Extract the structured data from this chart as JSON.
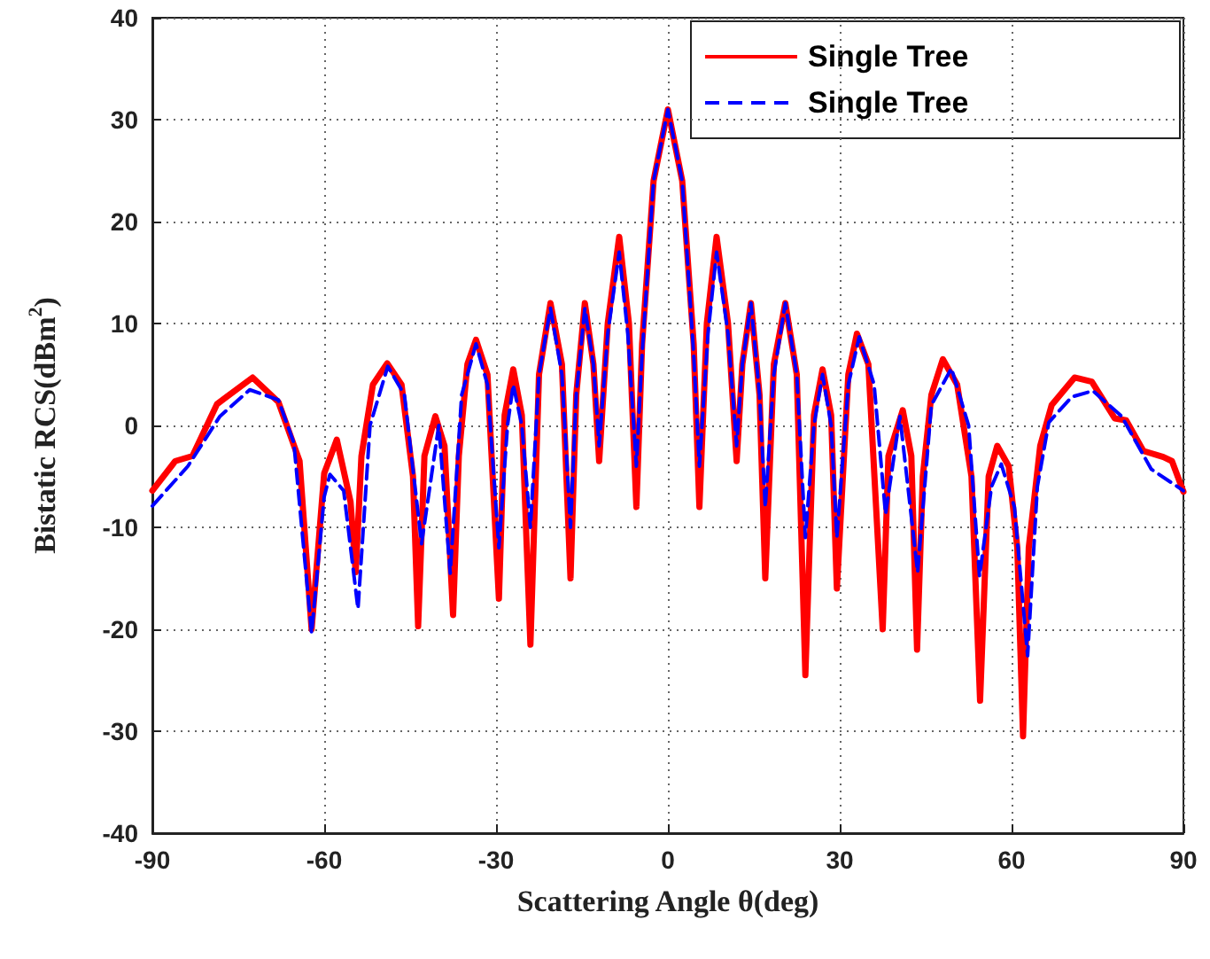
{
  "chart_data": {
    "type": "line",
    "xlabel": "Scattering Angle θ(deg)",
    "ylabel": "Bistatic RCS(dBm$^{2}$)",
    "xlim": [
      -90,
      90
    ],
    "xticks": [
      -90,
      -60,
      -30,
      0,
      30,
      60,
      90
    ],
    "ylim": [
      -40,
      40
    ],
    "yticks": [
      -40,
      -30,
      -20,
      -10,
      0,
      10,
      20,
      30,
      40
    ],
    "grid": true,
    "legend": "top right",
    "marker": "none",
    "series": [
      {
        "name": "Single Tree",
        "color": "#ff0000",
        "line_style": "solid",
        "x": [
          -90,
          -86,
          -83,
          -78.7,
          -72.5,
          -68,
          -64.3,
          -62.2,
          -60,
          -57.8,
          -55.4,
          -54.5,
          -53.5,
          -51.5,
          -49,
          -46.5,
          -44.5,
          -43.6,
          -42.5,
          -40.6,
          -39,
          -37.5,
          -36.5,
          -35,
          -33.5,
          -31.5,
          -29.5,
          -28.5,
          -27,
          -25.5,
          -24,
          -22.5,
          -20.5,
          -18.5,
          -17,
          -16,
          -14.5,
          -13,
          -12,
          -10.5,
          -8.5,
          -6.8,
          -5.5,
          -4.5,
          -2.5,
          0,
          2.5,
          4.5,
          5.5,
          6.8,
          8.5,
          10.5,
          12,
          13,
          14.5,
          16,
          17,
          18.5,
          20.5,
          22.5,
          24,
          25.5,
          27,
          28.5,
          29.5,
          31.5,
          33,
          35,
          37.5,
          38.5,
          41,
          42.5,
          43.5,
          44.5,
          46,
          48,
          50.5,
          53,
          54.5,
          56,
          57.5,
          59.5,
          61,
          62,
          63,
          65,
          67,
          71,
          74,
          78,
          80,
          83,
          86.5,
          88,
          90
        ],
        "values": [
          -6.4,
          -3.5,
          -3,
          2.1,
          4.7,
          2.3,
          -3.5,
          -20,
          -4.7,
          -1.4,
          -7.5,
          -14.4,
          -3,
          4,
          6.1,
          4,
          -5,
          -19.7,
          -3,
          0.9,
          -2,
          -18.6,
          -3,
          6,
          8.4,
          5,
          -17,
          1,
          5.5,
          1,
          -21.5,
          5,
          12,
          6,
          -15,
          3,
          12,
          6,
          -3.5,
          10,
          18.5,
          10,
          -8,
          8,
          24,
          31,
          24,
          8,
          -8,
          10,
          18.5,
          10,
          -3.5,
          6,
          12,
          3,
          -15,
          6,
          12,
          5,
          -24.5,
          1,
          5.5,
          1,
          -16,
          5,
          9,
          6,
          -20,
          -3,
          1.5,
          -3,
          -22,
          -5,
          3,
          6.5,
          4,
          -5,
          -27,
          -5,
          -2,
          -4,
          -12,
          -30.5,
          -12,
          -2,
          2,
          4.7,
          4.3,
          0.7,
          0.5,
          -2.5,
          -3.1,
          -3.5,
          -6.5
        ]
      },
      {
        "name": "Single Tree",
        "color": "#0000ff",
        "line_style": "dashed",
        "x": [
          -90,
          -83.8,
          -78.2,
          -73,
          -68,
          -65.3,
          -62.2,
          -60,
          -59,
          -56.6,
          -54.1,
          -52,
          -48.9,
          -46,
          -43,
          -40,
          -38,
          -36,
          -33.5,
          -31.5,
          -29.5,
          -28,
          -27,
          -25.5,
          -24,
          -22.5,
          -20.5,
          -18.5,
          -17,
          -16,
          -14.5,
          -13,
          -12,
          -10.5,
          -8.5,
          -7,
          -5.5,
          -4.5,
          -2.5,
          0,
          2.5,
          4.5,
          5.5,
          7,
          8.5,
          10.5,
          12,
          13,
          14.5,
          16,
          17,
          18.5,
          20.5,
          22.5,
          24,
          25.5,
          27,
          28.5,
          29.5,
          31.5,
          33.4,
          36,
          38,
          40.5,
          43.6,
          46,
          49.5,
          52.5,
          54.4,
          56.5,
          58.2,
          60.5,
          62.8,
          64.5,
          66.5,
          70.5,
          74.2,
          79.2,
          84.4,
          90
        ],
        "values": [
          -7.9,
          -4,
          0.9,
          3.5,
          2.5,
          -1.7,
          -20.4,
          -7,
          -4.8,
          -6.4,
          -18,
          0,
          5.8,
          3,
          -11.6,
          0,
          -14.5,
          3,
          8,
          4,
          -12,
          0,
          4,
          0,
          -10,
          5,
          11.5,
          5,
          -10,
          3,
          11.5,
          6,
          -2,
          9,
          17,
          9,
          -4,
          7,
          24,
          31,
          24,
          7,
          -4,
          9,
          17,
          9,
          -2,
          6,
          12,
          3,
          -8,
          5,
          12,
          5,
          -11,
          0,
          5,
          0,
          -11,
          4,
          8.7,
          4,
          -8.7,
          0.9,
          -14.4,
          2,
          5.6,
          0,
          -14.8,
          -6,
          -3.8,
          -8,
          -22.6,
          -6,
          0.3,
          2.8,
          3.4,
          0.9,
          -4.3,
          -6.4
        ]
      }
    ]
  }
}
